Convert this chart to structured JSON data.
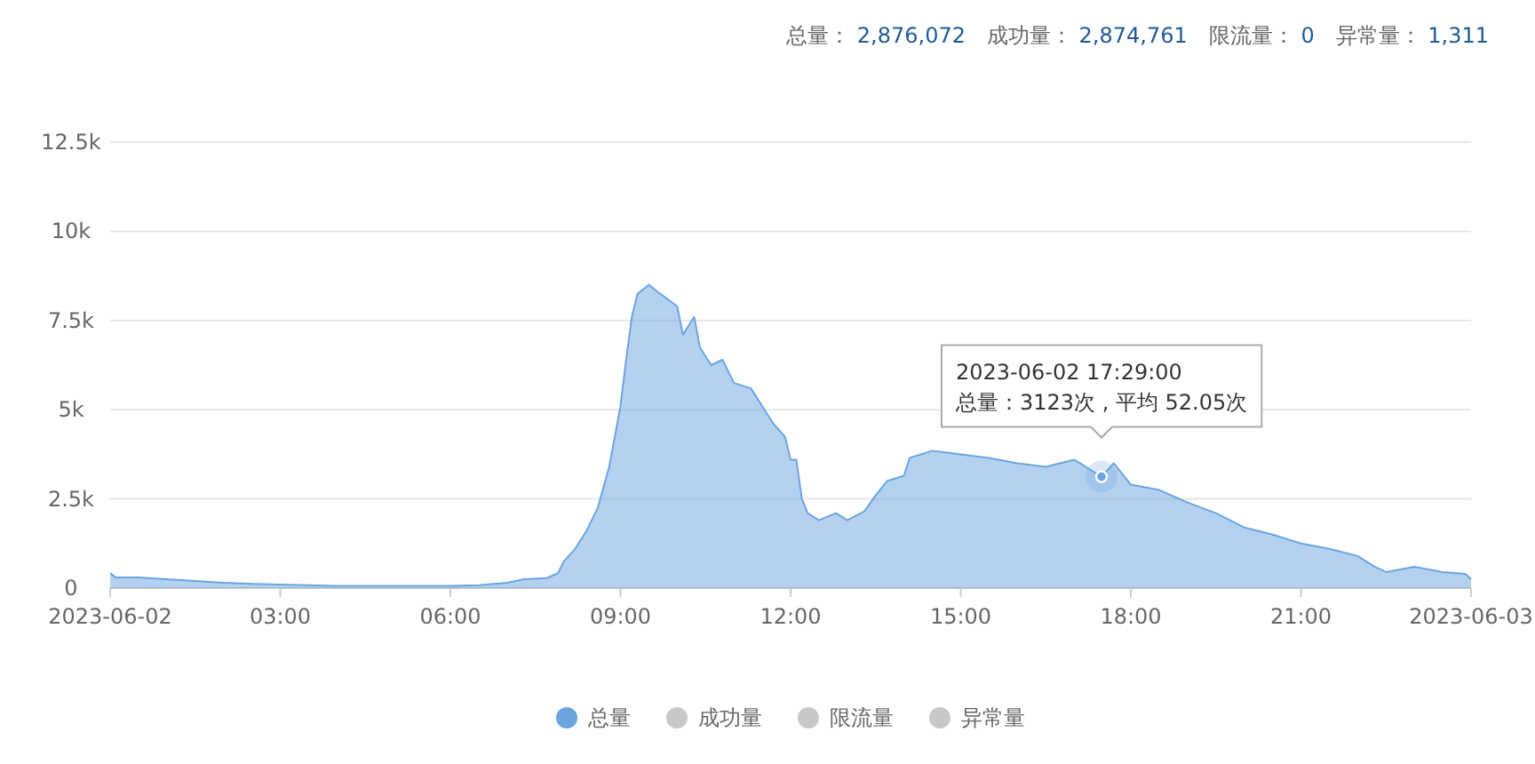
{
  "chart_data": {
    "type": "area",
    "x": [
      0,
      0.1,
      0.5,
      1,
      1.5,
      2,
      2.5,
      3,
      3.5,
      4,
      5,
      6,
      6.5,
      7,
      7.3,
      7.7,
      7.9,
      8.0,
      8.2,
      8.4,
      8.6,
      8.8,
      9.0,
      9.1,
      9.2,
      9.3,
      9.5,
      9.7,
      10.0,
      10.1,
      10.3,
      10.4,
      10.6,
      10.8,
      11.0,
      11.3,
      11.5,
      11.7,
      11.9,
      12.0,
      12.1,
      12.2,
      12.3,
      12.5,
      12.8,
      13.0,
      13.3,
      13.5,
      13.7,
      14.0,
      14.1,
      14.5,
      15.0,
      15.5,
      16.0,
      16.5,
      17.0,
      17.483,
      17.7,
      18.0,
      18.5,
      19.0,
      19.5,
      20.0,
      20.5,
      21.0,
      21.5,
      22.0,
      22.3,
      22.5,
      23.0,
      23.5,
      23.9,
      24.0
    ],
    "series": [
      {
        "name": "总量",
        "color": "#6aa5e0",
        "values": [
          420,
          300,
          300,
          250,
          200,
          150,
          120,
          100,
          80,
          60,
          60,
          60,
          80,
          150,
          250,
          280,
          420,
          750,
          1100,
          1600,
          2250,
          3400,
          5100,
          6400,
          7600,
          8250,
          8500,
          8250,
          7900,
          7100,
          7600,
          6750,
          6250,
          6400,
          5750,
          5600,
          5100,
          4600,
          4250,
          3600,
          3600,
          2500,
          2100,
          1900,
          2100,
          1900,
          2150,
          2600,
          3000,
          3150,
          3650,
          3850,
          3750,
          3650,
          3500,
          3400,
          3600,
          3123,
          3500,
          2900,
          2750,
          2400,
          2100,
          1700,
          1500,
          1250,
          1100,
          900,
          600,
          450,
          600,
          450,
          400,
          250
        ]
      },
      {
        "name": "成功量",
        "color": "#c8c8c8",
        "values": [
          null,
          null,
          null,
          null,
          null,
          null,
          null,
          null,
          null,
          null,
          null,
          null,
          null,
          null,
          null,
          null,
          null,
          null,
          null,
          null,
          null,
          null,
          null,
          null,
          null,
          null,
          null,
          null,
          null,
          null,
          null,
          null,
          null,
          null,
          null,
          null,
          null,
          null,
          null,
          null,
          null,
          null,
          null,
          null,
          null,
          null,
          null,
          null,
          null,
          null,
          null,
          null,
          null,
          null,
          null,
          null,
          null,
          null,
          null,
          null,
          null,
          null,
          null,
          null,
          null,
          null,
          null,
          null,
          null,
          null,
          null,
          null,
          null,
          null
        ]
      },
      {
        "name": "限流量",
        "color": "#c8c8c8",
        "values": [
          null,
          null,
          null,
          null,
          null,
          null,
          null,
          null,
          null,
          null,
          null,
          null,
          null,
          null,
          null,
          null,
          null,
          null,
          null,
          null,
          null,
          null,
          null,
          null,
          null,
          null,
          null,
          null,
          null,
          null,
          null,
          null,
          null,
          null,
          null,
          null,
          null,
          null,
          null,
          null,
          null,
          null,
          null,
          null,
          null,
          null,
          null,
          null,
          null,
          null,
          null,
          null,
          null,
          null,
          null,
          null,
          null,
          null,
          null,
          null,
          null,
          null,
          null,
          null,
          null,
          null,
          null,
          null,
          null,
          null,
          null,
          null,
          null,
          null
        ]
      },
      {
        "name": "异常量",
        "color": "#c8c8c8",
        "values": [
          null,
          null,
          null,
          null,
          null,
          null,
          null,
          null,
          null,
          null,
          null,
          null,
          null,
          null,
          null,
          null,
          null,
          null,
          null,
          null,
          null,
          null,
          null,
          null,
          null,
          null,
          null,
          null,
          null,
          null,
          null,
          null,
          null,
          null,
          null,
          null,
          null,
          null,
          null,
          null,
          null,
          null,
          null,
          null,
          null,
          null,
          null,
          null,
          null,
          null,
          null,
          null,
          null,
          null,
          null,
          null,
          null,
          null,
          null,
          null,
          null,
          null,
          null,
          null,
          null,
          null,
          null,
          null,
          null,
          null,
          null,
          null,
          null,
          null
        ]
      }
    ],
    "xlim": [
      0,
      24
    ],
    "xticks": [
      {
        "value": 0,
        "label": "2023-06-02"
      },
      {
        "value": 3,
        "label": "03:00"
      },
      {
        "value": 6,
        "label": "06:00"
      },
      {
        "value": 9,
        "label": "09:00"
      },
      {
        "value": 12,
        "label": "12:00"
      },
      {
        "value": 15,
        "label": "15:00"
      },
      {
        "value": 18,
        "label": "18:00"
      },
      {
        "value": 21,
        "label": "21:00"
      },
      {
        "value": 24,
        "label": "2023-06-03"
      }
    ],
    "ylim": [
      0,
      12500
    ],
    "yticks": [
      0,
      {
        "value": 2500,
        "label": "2.5k"
      },
      {
        "value": 5000,
        "label": "5k"
      },
      {
        "value": 7500,
        "label": "7.5k"
      },
      {
        "value": 10000,
        "label": "10k"
      },
      {
        "value": 12500,
        "label": "12.5k"
      }
    ],
    "grid": "y",
    "legend": "bottom",
    "annotations": [
      "总量： 2,876,072",
      "成功量： 2,874,761",
      "限流量： 0",
      "异常量： 1,311",
      {
        "text": "2023-06-02 17:29:00\n总量：3123次 , 平均 52.05次",
        "x": 17.483,
        "y": 3123
      }
    ]
  }
}
